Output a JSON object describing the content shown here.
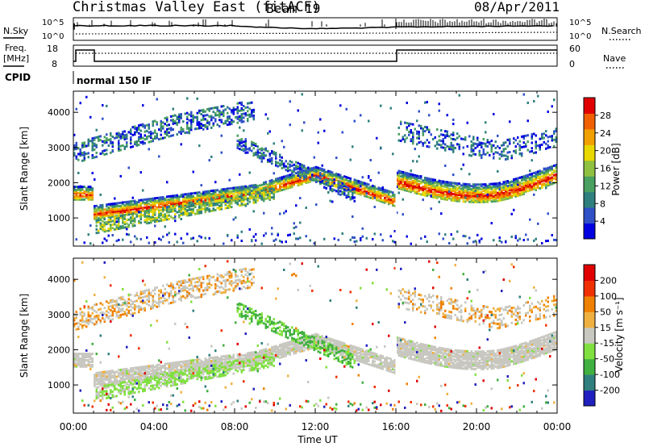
{
  "header": {
    "site": "Christmas Valley East (fitACF)",
    "beam": "Beam 19",
    "date": "08/Apr/2011"
  },
  "status_panels": {
    "nsky": {
      "left_label": "N.Sky",
      "ticks": [
        "10^5",
        "10^0"
      ],
      "right_label": "N.Search"
    },
    "freq": {
      "left_label_1": "Freq.",
      "left_label_2": "[MHz]",
      "left_ticks": [
        "18",
        "8"
      ],
      "right_ticks": [
        "60",
        "0"
      ],
      "right_label": "Nave"
    },
    "cpid": {
      "label": "CPID",
      "program": "normal 150 IF"
    }
  },
  "chart_data": [
    {
      "type": "heatmap",
      "name": "power",
      "ylabel": "Slant Range [km]",
      "yticks": [
        "4000",
        "3000",
        "2000",
        "1000"
      ],
      "ylim": [
        200,
        4600
      ],
      "colorbar_label": "Power [dB]",
      "colorbar_ticks": [
        "28",
        "24",
        "20",
        "16",
        "12",
        "8",
        "4"
      ],
      "colors": [
        "#0000e0",
        "#3050c8",
        "#2f7f7f",
        "#4aa060",
        "#8fc040",
        "#e8d800",
        "#f0a000",
        "#f06000",
        "#e00000"
      ]
    },
    {
      "type": "heatmap",
      "name": "velocity",
      "ylabel": "Slant Range [km]",
      "yticks": [
        "4000",
        "3000",
        "2000",
        "1000"
      ],
      "ylim": [
        200,
        4600
      ],
      "colorbar_label": "Velocity [m s⁻¹]",
      "colorbar_ticks": [
        "200",
        "100",
        "50",
        "15",
        "-15",
        "-50",
        "-100",
        "-200"
      ],
      "colors": [
        "#2020c0",
        "#2f7f7f",
        "#40b040",
        "#80e040",
        "#c8c8c0",
        "#f0b040",
        "#f08000",
        "#f03000",
        "#e00000"
      ]
    }
  ],
  "xaxis": {
    "label": "Time UT",
    "ticks": [
      "00:00",
      "04:00",
      "08:00",
      "12:00",
      "16:00",
      "20:00",
      "00:00"
    ]
  }
}
